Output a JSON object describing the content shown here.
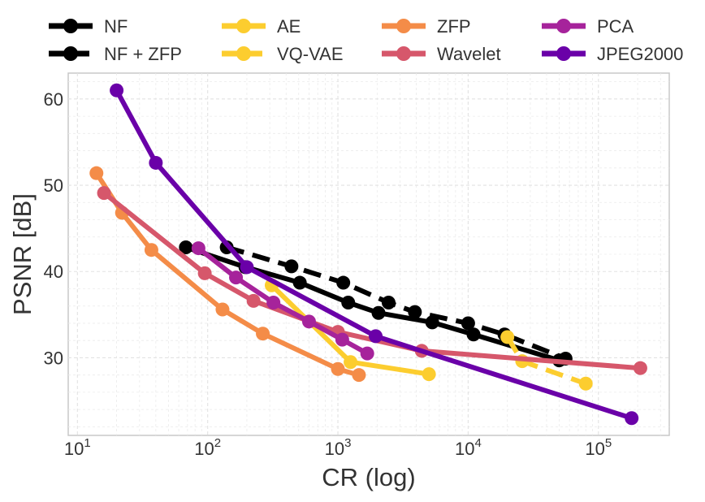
{
  "chart_data": {
    "type": "line",
    "title": "",
    "xlabel": "CR (log)",
    "ylabel": "PSNR [dB]",
    "xscale": "log10",
    "xlim": [
      8.5,
      350000
    ],
    "ylim": [
      21,
      63
    ],
    "xticks": [
      {
        "value": 10,
        "base": "10",
        "exp": "1"
      },
      {
        "value": 100,
        "base": "10",
        "exp": "2"
      },
      {
        "value": 1000,
        "base": "10",
        "exp": "3"
      },
      {
        "value": 10000,
        "base": "10",
        "exp": "4"
      },
      {
        "value": 100000,
        "base": "10",
        "exp": "5"
      }
    ],
    "yticks": [
      30,
      40,
      50,
      60
    ],
    "grid": true,
    "legend_position": "top",
    "series": [
      {
        "name": "NF",
        "color": "#000000",
        "dash": "solid",
        "points": [
          [
            68,
            42.8
          ],
          [
            195,
            40.5
          ],
          [
            510,
            38.7
          ],
          [
            1200,
            36.4
          ],
          [
            2050,
            35.2
          ],
          [
            5300,
            34.1
          ],
          [
            11000,
            32.7
          ],
          [
            50000,
            29.7
          ]
        ]
      },
      {
        "name": "NF + ZFP",
        "color": "#000000",
        "dash": "dashed",
        "points": [
          [
            140,
            42.8
          ],
          [
            440,
            40.6
          ],
          [
            1100,
            38.7
          ],
          [
            2450,
            36.4
          ],
          [
            3900,
            35.3
          ],
          [
            10000,
            34.0
          ],
          [
            19000,
            32.7
          ],
          [
            56000,
            29.9
          ]
        ]
      },
      {
        "name": "AE",
        "color": "#fccd2f",
        "dash": "solid",
        "points": [
          [
            310,
            38.4
          ],
          [
            1250,
            29.5
          ],
          [
            5000,
            28.1
          ]
        ]
      },
      {
        "name": "VQ-VAE",
        "color": "#fccd2f",
        "dash": "dashed",
        "points": [
          [
            20000,
            32.4
          ],
          [
            26000,
            29.6
          ],
          [
            80000,
            27.0
          ]
        ]
      },
      {
        "name": "ZFP",
        "color": "#f48c48",
        "dash": "solid",
        "points": [
          [
            14,
            51.4
          ],
          [
            22,
            46.8
          ],
          [
            37,
            42.5
          ],
          [
            130,
            35.6
          ],
          [
            265,
            32.8
          ],
          [
            1000,
            28.7
          ],
          [
            1450,
            28.0
          ]
        ]
      },
      {
        "name": "Wavelet",
        "color": "#d6576b",
        "dash": "solid",
        "points": [
          [
            16,
            49.1
          ],
          [
            95,
            39.8
          ],
          [
            225,
            36.6
          ],
          [
            1000,
            33.0
          ],
          [
            4400,
            30.8
          ],
          [
            210000,
            28.8
          ]
        ]
      },
      {
        "name": "PCA",
        "color": "#a6239b",
        "dash": "solid",
        "points": [
          [
            85,
            42.7
          ],
          [
            165,
            39.3
          ],
          [
            320,
            36.4
          ],
          [
            600,
            34.2
          ],
          [
            1080,
            32.1
          ],
          [
            1680,
            30.5
          ]
        ]
      },
      {
        "name": "JPEG2000",
        "color": "#6a00a8",
        "dash": "solid",
        "points": [
          [
            20,
            61.0
          ],
          [
            40,
            52.6
          ],
          [
            200,
            40.5
          ],
          [
            1950,
            32.5
          ],
          [
            180000,
            23.0
          ]
        ]
      }
    ]
  }
}
